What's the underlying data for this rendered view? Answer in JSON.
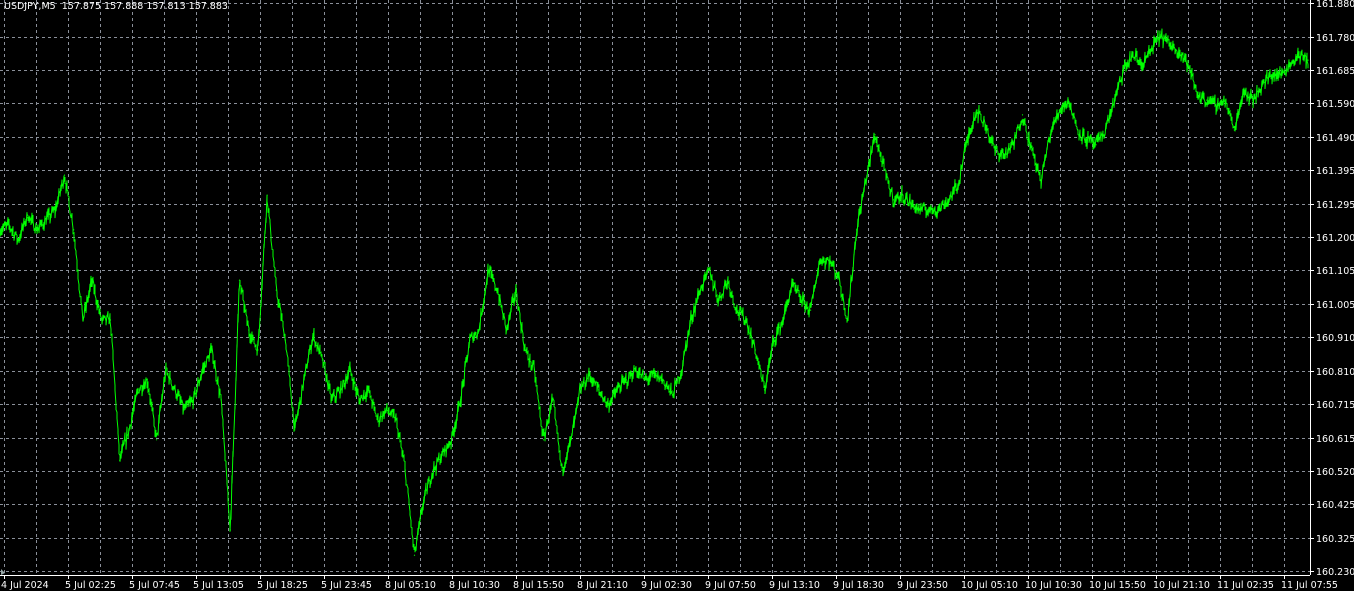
{
  "header": {
    "symbol_timeframe": "USDJPY,M5",
    "ohlc": "157.875 157.888 157.813 157.883"
  },
  "colors": {
    "background": "#000000",
    "grid": "#8a8f99",
    "line": "#00ff00",
    "axis": "#ffffff",
    "text": "#ffffff"
  },
  "chart_data": {
    "type": "line",
    "title": "",
    "grid": true,
    "ylim": [
      160.23,
      161.88
    ],
    "y_ticks": [
      "161.880",
      "161.780",
      "161.685",
      "161.590",
      "161.490",
      "161.395",
      "161.295",
      "161.200",
      "161.105",
      "161.005",
      "160.910",
      "160.810",
      "160.715",
      "160.615",
      "160.520",
      "160.425",
      "160.325",
      "160.230"
    ],
    "x_ticks": [
      "4 Jul 2024",
      "5 Jul 02:25",
      "5 Jul 07:45",
      "5 Jul 13:05",
      "5 Jul 18:25",
      "5 Jul 23:45",
      "8 Jul 05:10",
      "8 Jul 10:30",
      "8 Jul 15:50",
      "8 Jul 21:10",
      "9 Jul 02:30",
      "9 Jul 07:50",
      "9 Jul 13:10",
      "9 Jul 18:30",
      "9 Jul 23:50",
      "10 Jul 05:10",
      "10 Jul 10:30",
      "10 Jul 15:50",
      "10 Jul 21:10",
      "11 Jul 02:35",
      "11 Jul 07:55"
    ],
    "series": [
      {
        "values": [
          161.221,
          161.235,
          161.192,
          161.264,
          161.221,
          161.25,
          161.279,
          161.38,
          161.221,
          160.959,
          161.075,
          160.959,
          160.959,
          160.552,
          160.64,
          160.756,
          160.785,
          160.611,
          160.814,
          160.756,
          160.698,
          160.727,
          160.814,
          160.872,
          160.727,
          160.349,
          161.075,
          160.93,
          160.872,
          161.322,
          161.046,
          160.901,
          160.64,
          160.785,
          160.916,
          160.843,
          160.727,
          160.756,
          160.814,
          160.727,
          160.756,
          160.669,
          160.698,
          160.669,
          160.523,
          160.276,
          160.436,
          160.523,
          160.567,
          160.611,
          160.727,
          160.901,
          160.93,
          161.104,
          161.046,
          160.93,
          161.046,
          160.872,
          160.814,
          160.611,
          160.727,
          160.523,
          160.611,
          160.756,
          160.799,
          160.756,
          160.712,
          160.756,
          160.785,
          160.814,
          160.785,
          160.799,
          160.785,
          160.741,
          160.814,
          160.959,
          161.046,
          161.104,
          161.017,
          161.075,
          160.988,
          160.959,
          160.872,
          160.756,
          160.901,
          160.959,
          161.061,
          161.017,
          160.988,
          161.133,
          161.133,
          161.09,
          160.959,
          161.221,
          161.366,
          161.497,
          161.395,
          161.308,
          161.322,
          161.293,
          161.279,
          161.279,
          161.284,
          161.308,
          161.351,
          161.482,
          161.569,
          161.526,
          161.453,
          161.438,
          161.468,
          161.555,
          161.453,
          161.366,
          161.497,
          161.569,
          161.598,
          161.511,
          161.482,
          161.468,
          161.511,
          161.598,
          161.685,
          161.729,
          161.7,
          161.744,
          161.787,
          161.758,
          161.744,
          161.7,
          161.613,
          161.598,
          161.584,
          161.598,
          161.511,
          161.627,
          161.598,
          161.642,
          161.671,
          161.671,
          161.7,
          161.729,
          161.714
        ]
      }
    ]
  }
}
